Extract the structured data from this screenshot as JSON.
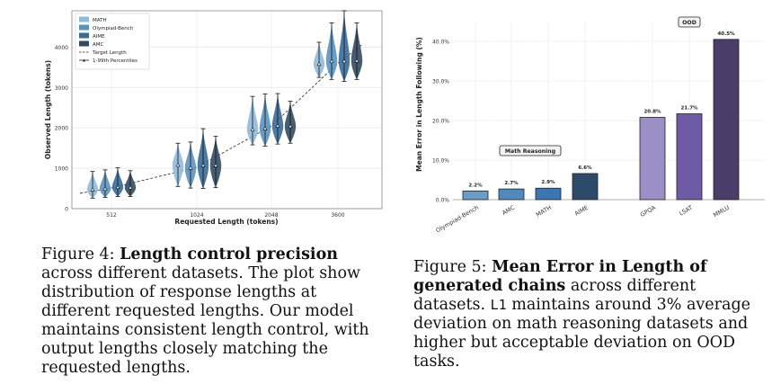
{
  "figure4": {
    "chart_data": {
      "type": "violin",
      "xlabel": "Requested Length (tokens)",
      "ylabel": "Observed Length (tokens)",
      "xticks": [
        "512",
        "1024",
        "2048",
        "3600"
      ],
      "yticks": [
        0,
        1000,
        2000,
        3000,
        4000
      ],
      "ylim": [
        0,
        4900
      ],
      "grid": true,
      "legend_position": "top-left",
      "legend": [
        "MATH",
        "Olympiad-Bench",
        "AIME",
        "AMC",
        "Target Length",
        "1-99th Percentiles"
      ],
      "series_colors": [
        "#8fbbdc",
        "#5a93c0",
        "#3a6c98",
        "#334b60"
      ],
      "groups": [
        {
          "requested": 512,
          "violins": [
            {
              "series": "MATH",
              "median": 470,
              "p1": 260,
              "p99": 920
            },
            {
              "series": "Olympiad-Bench",
              "median": 490,
              "p1": 280,
              "p99": 960
            },
            {
              "series": "AIME",
              "median": 530,
              "p1": 300,
              "p99": 1010
            },
            {
              "series": "AMC",
              "median": 520,
              "p1": 300,
              "p99": 940
            }
          ]
        },
        {
          "requested": 1024,
          "violins": [
            {
              "series": "MATH",
              "median": 1080,
              "p1": 550,
              "p99": 1620
            },
            {
              "series": "Olympiad-Bench",
              "median": 1010,
              "p1": 510,
              "p99": 1650
            },
            {
              "series": "AIME",
              "median": 1070,
              "p1": 500,
              "p99": 1980
            },
            {
              "series": "AMC",
              "median": 1070,
              "p1": 520,
              "p99": 1790
            }
          ]
        },
        {
          "requested": 2048,
          "violins": [
            {
              "series": "MATH",
              "median": 1960,
              "p1": 1580,
              "p99": 2780
            },
            {
              "series": "Olympiad-Bench",
              "median": 1980,
              "p1": 1550,
              "p99": 2840
            },
            {
              "series": "AIME",
              "median": 2050,
              "p1": 1600,
              "p99": 2850
            },
            {
              "series": "AMC",
              "median": 2040,
              "p1": 1620,
              "p99": 2660
            }
          ]
        },
        {
          "requested": 3600,
          "violins": [
            {
              "series": "MATH",
              "median": 3580,
              "p1": 3250,
              "p99": 4120
            },
            {
              "series": "Olympiad-Bench",
              "median": 3650,
              "p1": 3200,
              "p99": 4600
            },
            {
              "series": "AIME",
              "median": 3650,
              "p1": 3150,
              "p99": 5000
            },
            {
              "series": "AMC",
              "median": 3660,
              "p1": 3200,
              "p99": 4600
            }
          ]
        }
      ],
      "target_line": [
        [
          512,
          512
        ],
        [
          1024,
          1024
        ],
        [
          2048,
          2048
        ],
        [
          3600,
          3600
        ]
      ]
    },
    "caption": {
      "label": "Figure 4:",
      "bold": "Length control precision",
      "rest": "across different datasets. The plot show distribution of response lengths at different requested lengths. Our model maintains consistent length control, with output lengths closely matching the requested lengths."
    }
  },
  "figure5": {
    "chart_data": {
      "type": "bar",
      "ylabel": "Mean Error in Length Following (%)",
      "yticks": [
        "0.0%",
        "10.0%",
        "20.0%",
        "30.0%",
        "40.0%"
      ],
      "ylim": [
        0,
        45
      ],
      "grid": true,
      "categories": [
        "Olympiad-Bench",
        "AMC",
        "MATH",
        "AIME",
        "GPQA",
        "LSAT",
        "MMLU"
      ],
      "values": [
        2.2,
        2.7,
        2.9,
        6.6,
        20.8,
        21.7,
        40.5
      ],
      "value_labels": [
        "2.2%",
        "2.7%",
        "2.9%",
        "6.6%",
        "20.8%",
        "21.7%",
        "40.5%"
      ],
      "colors": [
        "#6a9cc8",
        "#4f89bd",
        "#3b76b0",
        "#2c4b6b",
        "#9b8fc6",
        "#6f5aa6",
        "#4a3d6a"
      ],
      "annotations": [
        {
          "text": "Math Reasoning",
          "group": "math"
        },
        {
          "text": "OOD",
          "group": "ood"
        }
      ]
    },
    "caption": {
      "label": "Figure 5:",
      "bold": "Mean Error in Length of generated chains",
      "rest_a": "across different datasets.",
      "mono": "L1",
      "rest_b": "maintains around 3% average deviation on math reasoning datasets and higher but acceptable deviation on OOD tasks."
    }
  }
}
